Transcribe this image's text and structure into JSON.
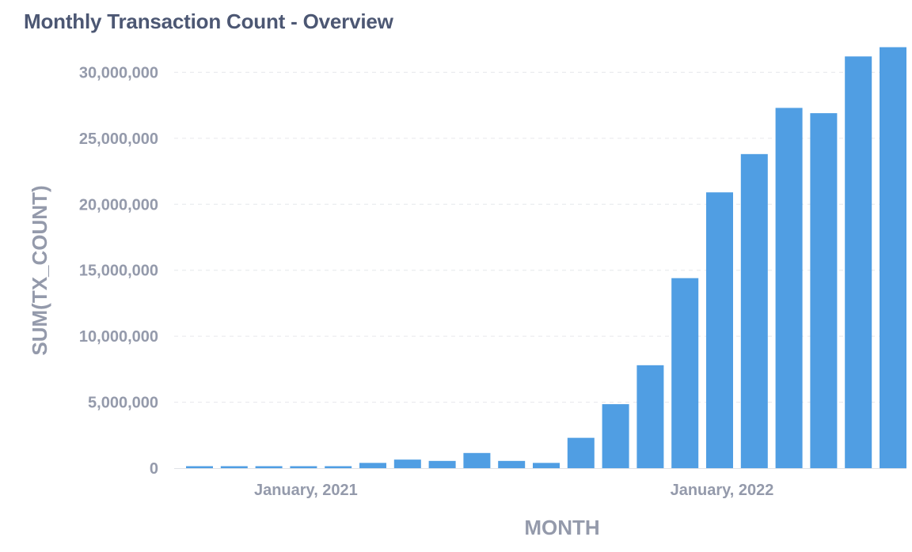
{
  "card": {
    "title": "Monthly Transaction Count - Overview"
  },
  "chart_data": {
    "type": "bar",
    "xlabel": "MONTH",
    "ylabel": "SUM(TX_COUNT)",
    "ylim": [
      0,
      32000000
    ],
    "yticks": [
      0,
      5000000,
      10000000,
      15000000,
      20000000,
      25000000,
      30000000
    ],
    "ytick_labels": [
      "0",
      "5,000,000",
      "10,000,000",
      "15,000,000",
      "20,000,000",
      "25,000,000",
      "30,000,000"
    ],
    "xtick_labels": [
      {
        "category": "2021-01",
        "label": "January, 2021"
      },
      {
        "category": "2022-01",
        "label": "January, 2022"
      }
    ],
    "grid": true,
    "bar_color": "#509ee3",
    "categories": [
      "2020-10",
      "2020-11",
      "2020-12",
      "2021-01",
      "2021-02",
      "2021-03",
      "2021-04",
      "2021-05",
      "2021-06",
      "2021-07",
      "2021-08",
      "2021-09",
      "2021-10",
      "2021-11",
      "2021-12",
      "2022-01",
      "2022-02",
      "2022-03",
      "2022-04",
      "2022-05",
      "2022-06"
    ],
    "values": [
      150000,
      150000,
      150000,
      150000,
      150000,
      400000,
      650000,
      550000,
      1150000,
      550000,
      400000,
      2300000,
      4850000,
      7800000,
      14400000,
      20900000,
      23800000,
      27300000,
      26900000,
      31200000,
      31900000
    ]
  }
}
